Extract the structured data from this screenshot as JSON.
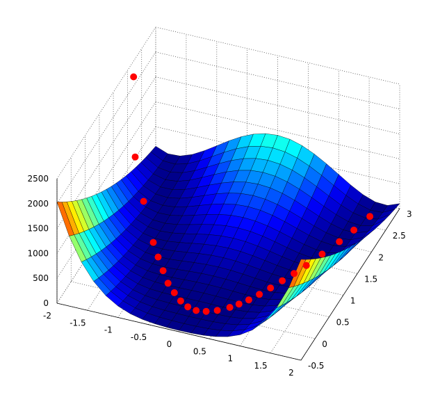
{
  "chart_data": {
    "type": "surface",
    "title": "",
    "xlabel": "",
    "ylabel": "",
    "zlabel": "",
    "xlim": [
      -2,
      2
    ],
    "ylim": [
      -0.5,
      3
    ],
    "zlim": [
      0,
      2500
    ],
    "grid": true,
    "colormap": "jet",
    "x_ticks": [
      "-2",
      "-1.5",
      "-1",
      "-0.5",
      "0",
      "0.5",
      "1",
      "1.5",
      "2"
    ],
    "y_ticks": [
      "-0.5",
      "0",
      "0.5",
      "1",
      "1.5",
      "2",
      "2.5",
      "3"
    ],
    "z_ticks": [
      "0",
      "500",
      "1000",
      "1500",
      "2000",
      "2500"
    ],
    "x_tick_values": [
      -2,
      -1.5,
      -1,
      -0.5,
      0,
      0.5,
      1,
      1.5,
      2
    ],
    "y_tick_values": [
      -0.5,
      0,
      0.5,
      1,
      1.5,
      2,
      2.5,
      3
    ],
    "z_tick_values": [
      0,
      500,
      1000,
      1500,
      2000,
      2500
    ],
    "surface": {
      "function": "100*(y - x^2)^2 + (1 - x)^2",
      "x_range": [
        -2,
        2
      ],
      "y_range": [
        -0.5,
        3
      ],
      "x_steps": 20,
      "y_steps": 20
    },
    "marker_color": "#ff0000",
    "path_points": [
      {
        "x": -1.9,
        "y": 2.0,
        "z": 2400
      },
      {
        "x": -1.55,
        "y": 1.3,
        "z": 1500
      },
      {
        "x": -1.25,
        "y": 0.95,
        "z": 1000
      },
      {
        "x": -1.0,
        "y": 0.75,
        "z": 420
      },
      {
        "x": -0.85,
        "y": 0.6,
        "z": 300
      },
      {
        "x": -0.7,
        "y": 0.45,
        "z": 200
      },
      {
        "x": -0.55,
        "y": 0.3,
        "z": 120
      },
      {
        "x": -0.4,
        "y": 0.2,
        "z": 60
      },
      {
        "x": -0.25,
        "y": 0.1,
        "z": 25
      },
      {
        "x": -0.1,
        "y": 0.03,
        "z": 10
      },
      {
        "x": 0.05,
        "y": 0.0,
        "z": 5
      },
      {
        "x": 0.2,
        "y": 0.03,
        "z": 5
      },
      {
        "x": 0.35,
        "y": 0.1,
        "z": 5
      },
      {
        "x": 0.5,
        "y": 0.22,
        "z": 5
      },
      {
        "x": 0.6,
        "y": 0.33,
        "z": 5
      },
      {
        "x": 0.7,
        "y": 0.46,
        "z": 5
      },
      {
        "x": 0.8,
        "y": 0.62,
        "z": 5
      },
      {
        "x": 0.9,
        "y": 0.8,
        "z": 5
      },
      {
        "x": 1.0,
        "y": 1.0,
        "z": 5
      },
      {
        "x": 1.1,
        "y": 1.2,
        "z": 5
      },
      {
        "x": 1.2,
        "y": 1.42,
        "z": 5
      },
      {
        "x": 1.32,
        "y": 1.72,
        "z": 5
      },
      {
        "x": 1.45,
        "y": 2.05,
        "z": 5
      },
      {
        "x": 1.55,
        "y": 2.35,
        "z": 5
      },
      {
        "x": 1.65,
        "y": 2.7,
        "z": 5
      }
    ]
  }
}
